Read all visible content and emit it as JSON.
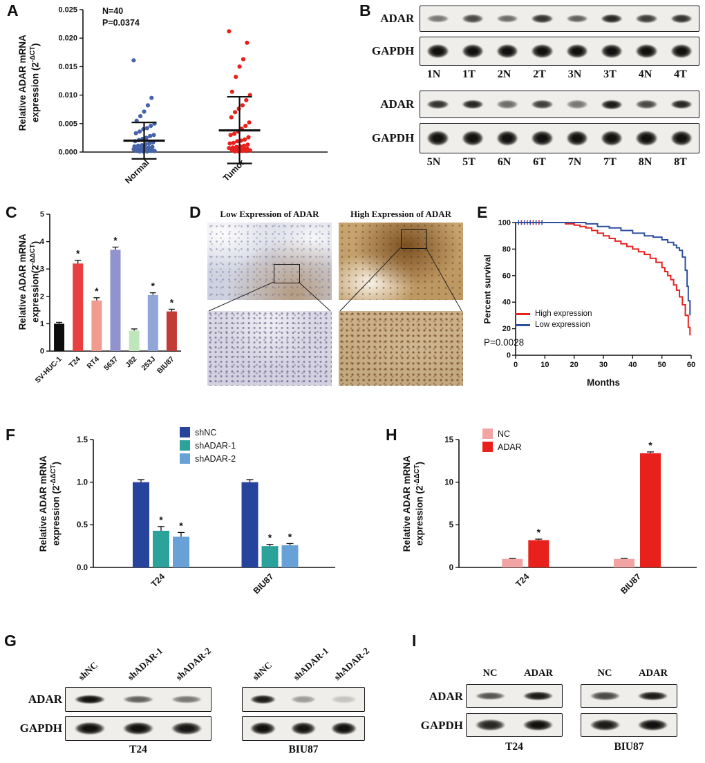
{
  "panels": {
    "A": {
      "letter": "A",
      "stats": [
        "N=40",
        "P=0.0374"
      ],
      "ylabel_line1": "Relative ADAR mRNA",
      "ylabel_line2_prefix": "expression (2",
      "ylabel_exp": "-ΔCT",
      "ylabel_suffix": ")"
    },
    "B": {
      "letter": "B",
      "blocks": [
        {
          "row_labels": [
            "ADAR",
            "GAPDH"
          ],
          "lanes": [
            "1N",
            "1T",
            "2N",
            "2T",
            "3N",
            "3T",
            "4N",
            "4T"
          ],
          "adar": [
            0.5,
            0.7,
            0.55,
            0.8,
            0.6,
            0.85,
            0.75,
            0.8
          ],
          "gapdh": [
            0.95,
            0.95,
            0.95,
            0.95,
            0.95,
            0.95,
            0.95,
            0.95
          ]
        },
        {
          "row_labels": [
            "ADAR",
            "GAPDH"
          ],
          "lanes": [
            "5N",
            "5T",
            "6N",
            "6T",
            "7N",
            "7T",
            "8N",
            "8T"
          ],
          "adar": [
            0.8,
            0.85,
            0.55,
            0.75,
            0.5,
            0.9,
            0.7,
            0.85
          ],
          "gapdh": [
            0.95,
            0.95,
            0.95,
            0.95,
            0.95,
            0.95,
            0.95,
            0.95
          ]
        }
      ]
    },
    "C": {
      "letter": "C",
      "ylabel_line1": "Relative ADAR mRNA",
      "ylabel_line2_prefix": "expression(2",
      "ylabel_exp": "-ΔΔCT",
      "ylabel_suffix": ")"
    },
    "D": {
      "letter": "D",
      "titles": [
        "Low Expression of ADAR",
        "High Expression of ADAR"
      ]
    },
    "E": {
      "letter": "E",
      "ylabel": "Percent survival",
      "xlabel": "Months",
      "legend": [
        {
          "label": "High expression",
          "color": "#e8211d"
        },
        {
          "label": "Low expression",
          "color": "#2e4f9e"
        }
      ],
      "pvalue": "P=0.0028"
    },
    "F": {
      "letter": "F",
      "ylabel_line1": "Relative ADAR mRNA",
      "ylabel_line2_prefix": "expression (2",
      "ylabel_exp": "-ΔΔCT",
      "ylabel_suffix": ")",
      "legend": [
        {
          "label": "shNC",
          "color": "#27449c"
        },
        {
          "label": "shADAR-1",
          "color": "#2ba39b"
        },
        {
          "label": "shADAR-2",
          "color": "#68a0d8"
        }
      ]
    },
    "G": {
      "letter": "G",
      "row_labels": [
        "ADAR",
        "GAPDH"
      ],
      "blocks": [
        {
          "lanes": [
            "shNC",
            "shADAR-1",
            "shADAR-2"
          ],
          "caption": "T24",
          "adar": [
            0.95,
            0.6,
            0.5
          ],
          "gapdh": [
            0.95,
            0.95,
            0.92
          ]
        },
        {
          "lanes": [
            "shNC",
            "shADAR-1",
            "shADAR-2"
          ],
          "caption": "BIU87",
          "adar": [
            0.9,
            0.35,
            0.18
          ],
          "gapdh": [
            0.95,
            0.93,
            0.95
          ]
        }
      ]
    },
    "H": {
      "letter": "H",
      "ylabel_line1": "Relative ADAR mRNA",
      "ylabel_line2_prefix": "expression (2",
      "ylabel_exp": "-ΔΔCT",
      "ylabel_suffix": ")",
      "legend": [
        {
          "label": "NC",
          "color": "#f2a3a3"
        },
        {
          "label": "ADAR",
          "color": "#e8211d"
        }
      ]
    },
    "I": {
      "letter": "I",
      "row_labels": [
        "ADAR",
        "GAPDH"
      ],
      "blocks": [
        {
          "lanes": [
            "NC",
            "ADAR"
          ],
          "caption": "T24",
          "adar": [
            0.65,
            0.9
          ],
          "gapdh": [
            0.85,
            0.95
          ]
        },
        {
          "lanes": [
            "NC",
            "ADAR"
          ],
          "caption": "BIU87",
          "adar": [
            0.7,
            0.9
          ],
          "gapdh": [
            0.9,
            0.95
          ]
        }
      ]
    }
  },
  "chart_data": [
    {
      "id": "A",
      "type": "scatter",
      "ylabel": "Relative ADAR mRNA expression (2^-ΔCT)",
      "categories": [
        "Normal",
        "Tumor"
      ],
      "ylim": [
        0,
        0.025
      ],
      "yticks": [
        0,
        0.005,
        0.01,
        0.015,
        0.02,
        0.025
      ],
      "annotations": [
        "N=40",
        "P=0.0374"
      ],
      "series": [
        {
          "name": "Normal",
          "color": "#4663aa",
          "mean": 0.002,
          "err_high": 0.0052,
          "err_low": -0.0012,
          "values": [
            0.0161,
            0.0095,
            0.0082,
            0.0071,
            0.0063,
            0.0055,
            0.005,
            0.0046,
            0.0042,
            0.004,
            0.0036,
            0.0033,
            0.003,
            0.0028,
            0.0025,
            0.0023,
            0.0021,
            0.0019,
            0.0017,
            0.0015,
            0.0014,
            0.0012,
            0.0011,
            0.001,
            0.0009,
            0.0008,
            0.0007,
            0.0006,
            0.0005,
            0.0005,
            0.0004,
            0.0004,
            0.0003,
            0.0003,
            0.0002,
            0.0002,
            0.0002,
            0.0001,
            0.0001,
            0.0001
          ]
        },
        {
          "name": "Tumor",
          "color": "#e8211d",
          "mean": 0.0038,
          "err_high": 0.0097,
          "err_low": -0.002,
          "values": [
            0.0212,
            0.0192,
            0.0163,
            0.015,
            0.0132,
            0.0106,
            0.01,
            0.0091,
            0.0082,
            0.0076,
            0.007,
            0.0061,
            0.0052,
            0.0046,
            0.0041,
            0.0036,
            0.0032,
            0.003,
            0.0026,
            0.0022,
            0.002,
            0.0019,
            0.0016,
            0.0015,
            0.0013,
            0.0011,
            0.001,
            0.0009,
            0.0008,
            0.0007,
            0.0006,
            0.0005,
            0.0005,
            0.0004,
            0.0003,
            0.0003,
            0.0002,
            0.0002,
            0.0001,
            0.0001
          ]
        }
      ]
    },
    {
      "id": "C",
      "type": "bar",
      "ylabel": "Relative ADAR mRNA expression(2^-ΔΔCT)",
      "categories": [
        "SV-HUC-1",
        "T24",
        "RT4",
        "5637",
        "J82",
        "253J",
        "BIU87"
      ],
      "values": [
        1.0,
        3.2,
        1.85,
        3.7,
        0.75,
        2.05,
        1.45
      ],
      "errors": [
        0.05,
        0.12,
        0.1,
        0.1,
        0.06,
        0.08,
        0.08
      ],
      "colors": [
        "#0d0d0d",
        "#e84040",
        "#f09a90",
        "#9093ce",
        "#bfe6ba",
        "#8fa6d6",
        "#c23b34"
      ],
      "sig": [
        false,
        true,
        true,
        true,
        false,
        true,
        true
      ],
      "ylim": [
        0,
        5
      ],
      "yticks": [
        0,
        1,
        2,
        3,
        4,
        5
      ],
      "dec": 0
    },
    {
      "id": "E",
      "type": "km",
      "xlabel": "Months",
      "ylabel": "Percent survival",
      "annotation": "P=0.0028",
      "xlim": [
        0,
        60
      ],
      "xticks": [
        0,
        10,
        20,
        30,
        40,
        50,
        60
      ],
      "ylim": [
        0,
        100
      ],
      "yticks": [
        0,
        20,
        40,
        60,
        80,
        100
      ],
      "dec": 0,
      "series": [
        {
          "name": "High expression",
          "color": "#e8211d",
          "censor_x": [
            2,
            4,
            6,
            8
          ],
          "points": [
            [
              0,
              100
            ],
            [
              14,
              100
            ],
            [
              17,
              99
            ],
            [
              20,
              98
            ],
            [
              22,
              97
            ],
            [
              24,
              96
            ],
            [
              26,
              94
            ],
            [
              28,
              92
            ],
            [
              30,
              90
            ],
            [
              32,
              88
            ],
            [
              34,
              86
            ],
            [
              36,
              84
            ],
            [
              38,
              82
            ],
            [
              40,
              80
            ],
            [
              42,
              78
            ],
            [
              44,
              76
            ],
            [
              46,
              73
            ],
            [
              48,
              70
            ],
            [
              50,
              66
            ],
            [
              51,
              63
            ],
            [
              52,
              60
            ],
            [
              53,
              57
            ],
            [
              54,
              53
            ],
            [
              55,
              49
            ],
            [
              56,
              44
            ],
            [
              57,
              38
            ],
            [
              58,
              30
            ],
            [
              59,
              21
            ],
            [
              59.6,
              15
            ]
          ]
        },
        {
          "name": "Low expression",
          "color": "#2e4f9e",
          "censor_x": [
            1,
            3,
            5,
            7,
            9
          ],
          "points": [
            [
              0,
              100
            ],
            [
              20,
              100
            ],
            [
              24,
              99
            ],
            [
              28,
              97
            ],
            [
              32,
              96
            ],
            [
              36,
              94
            ],
            [
              40,
              92
            ],
            [
              44,
              90
            ],
            [
              47,
              89
            ],
            [
              50,
              87
            ],
            [
              52,
              85
            ],
            [
              54,
              83
            ],
            [
              55,
              81
            ],
            [
              56,
              79
            ],
            [
              57,
              74
            ],
            [
              58,
              64
            ],
            [
              58.6,
              52
            ],
            [
              59,
              41
            ],
            [
              59.6,
              30
            ]
          ]
        }
      ]
    },
    {
      "id": "F",
      "type": "groupbar",
      "ylabel": "Relative ADAR mRNA expression (2^-ΔΔCT)",
      "categories": [
        "T24",
        "BIU87"
      ],
      "series": [
        {
          "name": "shNC",
          "color": "#27449c",
          "values": [
            1.0,
            1.0
          ],
          "errors": [
            0.03,
            0.03
          ],
          "sig": [
            false,
            false
          ]
        },
        {
          "name": "shADAR-1",
          "color": "#2ba39b",
          "values": [
            0.43,
            0.25
          ],
          "errors": [
            0.05,
            0.02
          ],
          "sig": [
            true,
            true
          ]
        },
        {
          "name": "shADAR-2",
          "color": "#68a0d8",
          "values": [
            0.36,
            0.26
          ],
          "errors": [
            0.05,
            0.02
          ],
          "sig": [
            true,
            true
          ]
        }
      ],
      "ylim": [
        0,
        1.5
      ],
      "yticks": [
        0,
        0.5,
        1.0,
        1.5
      ],
      "dec": 1
    },
    {
      "id": "H",
      "type": "groupbar",
      "ylabel": "Relative ADAR mRNA expression (2^-ΔΔCT)",
      "categories": [
        "T24",
        "BIU87"
      ],
      "series": [
        {
          "name": "NC",
          "color": "#f2a3a3",
          "values": [
            1.0,
            1.0
          ],
          "errors": [
            0.05,
            0.05
          ],
          "sig": [
            false,
            false
          ]
        },
        {
          "name": "ADAR",
          "color": "#e8211d",
          "values": [
            3.2,
            13.4
          ],
          "errors": [
            0.12,
            0.15
          ],
          "sig": [
            true,
            true
          ]
        }
      ],
      "ylim": [
        0,
        15
      ],
      "yticks": [
        0,
        5,
        10,
        15
      ],
      "dec": 0
    }
  ]
}
